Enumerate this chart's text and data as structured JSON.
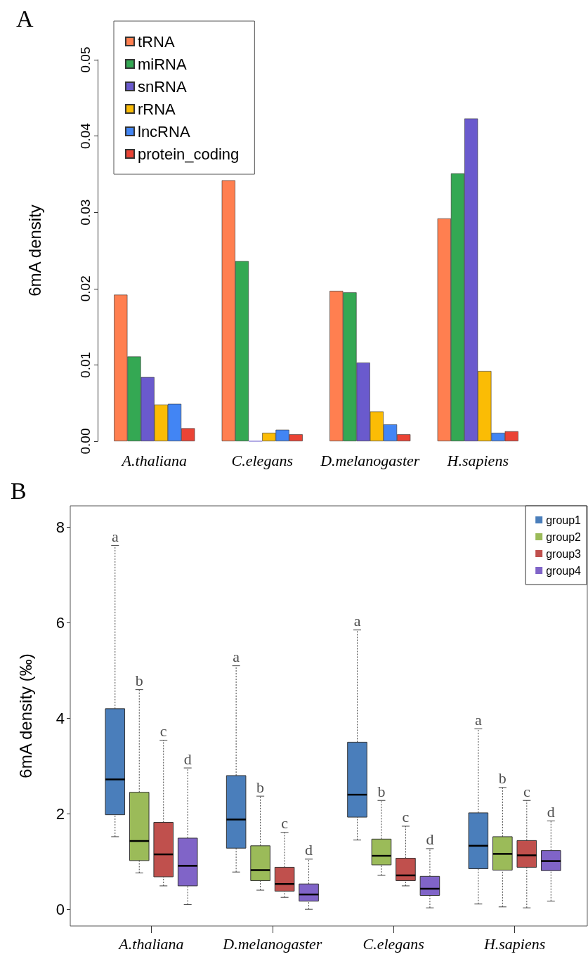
{
  "chart_data": [
    {
      "type": "bar",
      "title": "A",
      "ylabel": "6mA density",
      "categories": [
        "A.thaliana",
        "C.elegans",
        "D.melanogaster",
        "H.sapiens"
      ],
      "ylim": [
        0,
        0.05
      ],
      "yticks": [
        {
          "value": 0,
          "label": "0.00"
        },
        0.01,
        0.02,
        0.03,
        0.04,
        0.05
      ],
      "legend": "top left",
      "series": [
        {
          "name": "tRNA",
          "color": "#ff7f50",
          "values": [
            0.0192,
            0.0342,
            0.0197,
            0.0292
          ]
        },
        {
          "name": "miRNA",
          "color": "#34a853",
          "values": [
            0.0111,
            0.0236,
            0.0195,
            0.0351
          ]
        },
        {
          "name": "snRNA",
          "color": "#6a5acd",
          "values": [
            0.0084,
            0,
            0.0103,
            0.0423
          ]
        },
        {
          "name": "rRNA",
          "color": "#fbbc05",
          "values": [
            0.0048,
            0.0011,
            0.0039,
            0.0092
          ]
        },
        {
          "name": "lncRNA",
          "color": "#4285f4",
          "values": [
            0.0049,
            0.0015,
            0.0022,
            0.0011
          ]
        },
        {
          "name": "protein_coding",
          "color": "#ea4335",
          "values": [
            0.0017,
            0.0009,
            0.0009,
            0.0013
          ]
        }
      ]
    },
    {
      "type": "box",
      "title": "B",
      "ylabel": "6mA density (‰)",
      "categories": [
        "A.thaliana",
        "D.melanogaster",
        "C.elegans",
        "H.sapiens"
      ],
      "ylim": [
        -0.35,
        8.45
      ],
      "yticks": [
        0,
        2,
        4,
        6,
        8
      ],
      "legend": "top right",
      "series": [
        {
          "name": "group1",
          "color": "#4a7ebb",
          "value_labels": [
            "a",
            "a",
            "a",
            "a"
          ],
          "boxes": [
            {
              "low": 1.52,
              "q1": 1.98,
              "median": 2.72,
              "q3": 4.2,
              "high": 7.62
            },
            {
              "low": 0.78,
              "q1": 1.28,
              "median": 1.88,
              "q3": 2.8,
              "high": 5.1
            },
            {
              "low": 1.45,
              "q1": 1.93,
              "median": 2.4,
              "q3": 3.5,
              "high": 5.85
            },
            {
              "low": 0.11,
              "q1": 0.85,
              "median": 1.33,
              "q3": 2.02,
              "high": 3.78
            }
          ]
        },
        {
          "name": "group2",
          "color": "#9bbb59",
          "value_labels": [
            "b",
            "b",
            "b",
            "b"
          ],
          "boxes": [
            {
              "low": 0.76,
              "q1": 1.02,
              "median": 1.43,
              "q3": 2.45,
              "high": 4.6
            },
            {
              "low": 0.4,
              "q1": 0.6,
              "median": 0.82,
              "q3": 1.33,
              "high": 2.37
            },
            {
              "low": 0.71,
              "q1": 0.93,
              "median": 1.12,
              "q3": 1.47,
              "high": 2.28
            },
            {
              "low": 0.05,
              "q1": 0.82,
              "median": 1.16,
              "q3": 1.52,
              "high": 2.55
            }
          ]
        },
        {
          "name": "group3",
          "color": "#c0504d",
          "value_labels": [
            "c",
            "c",
            "c",
            "c"
          ],
          "boxes": [
            {
              "low": 0.49,
              "q1": 0.68,
              "median": 1.15,
              "q3": 1.82,
              "high": 3.54
            },
            {
              "low": 0.25,
              "q1": 0.38,
              "median": 0.53,
              "q3": 0.88,
              "high": 1.61
            },
            {
              "low": 0.49,
              "q1": 0.6,
              "median": 0.71,
              "q3": 1.07,
              "high": 1.74
            },
            {
              "low": 0.03,
              "q1": 0.88,
              "median": 1.13,
              "q3": 1.44,
              "high": 2.28
            }
          ]
        },
        {
          "name": "group4",
          "color": "#8064c8",
          "value_labels": [
            "d",
            "d",
            "d",
            "d"
          ],
          "boxes": [
            {
              "low": 0.1,
              "q1": 0.49,
              "median": 0.91,
              "q3": 1.49,
              "high": 2.96
            },
            {
              "low": 0,
              "q1": 0.17,
              "median": 0.31,
              "q3": 0.53,
              "high": 1.05
            },
            {
              "low": 0.03,
              "q1": 0.29,
              "median": 0.43,
              "q3": 0.69,
              "high": 1.27
            },
            {
              "low": 0.17,
              "q1": 0.81,
              "median": 1.01,
              "q3": 1.23,
              "high": 1.85
            }
          ]
        }
      ]
    }
  ]
}
